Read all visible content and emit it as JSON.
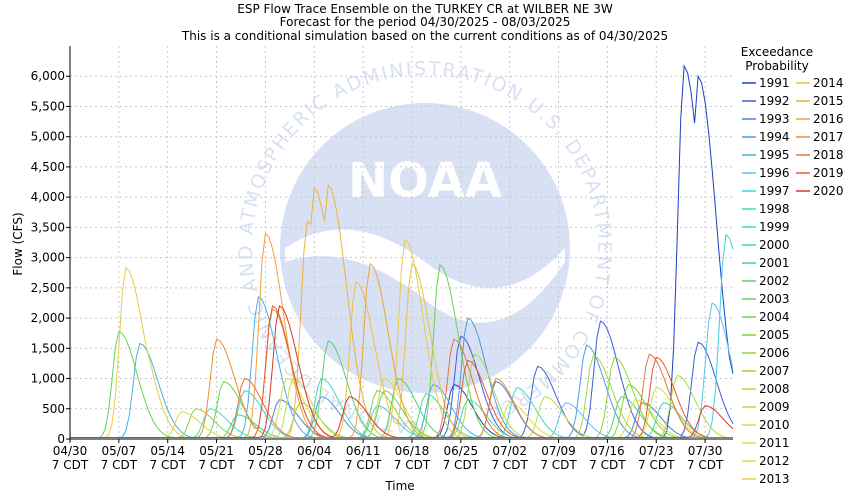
{
  "chart_data": {
    "type": "line",
    "title": [
      "ESP Flow Trace Ensemble on the TURKEY CR at WILBER NE 3W",
      "Forecast for the period 04/30/2025 - 08/03/2025",
      "This is a conditional simulation based on the current conditions as of 04/30/2025"
    ],
    "xlabel": "Time",
    "ylabel": "Flow (CFS)",
    "xlim": [
      "2025-04-30",
      "2025-08-03"
    ],
    "ylim": [
      0,
      6500
    ],
    "grid": true,
    "x_ticks": [
      {
        "date": "2025-04-30",
        "label": "04/30",
        "sub": "7 CDT"
      },
      {
        "date": "2025-05-07",
        "label": "05/07",
        "sub": "7 CDT"
      },
      {
        "date": "2025-05-14",
        "label": "05/14",
        "sub": "7 CDT"
      },
      {
        "date": "2025-05-21",
        "label": "05/21",
        "sub": "7 CDT"
      },
      {
        "date": "2025-05-28",
        "label": "05/28",
        "sub": "7 CDT"
      },
      {
        "date": "2025-06-04",
        "label": "06/04",
        "sub": "7 CDT"
      },
      {
        "date": "2025-06-11",
        "label": "06/11",
        "sub": "7 CDT"
      },
      {
        "date": "2025-06-18",
        "label": "06/18",
        "sub": "7 CDT"
      },
      {
        "date": "2025-06-25",
        "label": "06/25",
        "sub": "7 CDT"
      },
      {
        "date": "2025-07-02",
        "label": "07/02",
        "sub": "7 CDT"
      },
      {
        "date": "2025-07-09",
        "label": "07/09",
        "sub": "7 CDT"
      },
      {
        "date": "2025-07-16",
        "label": "07/16",
        "sub": "7 CDT"
      },
      {
        "date": "2025-07-23",
        "label": "07/23",
        "sub": "7 CDT"
      },
      {
        "date": "2025-07-30",
        "label": "07/30",
        "sub": "7 CDT"
      }
    ],
    "y_ticks": [
      {
        "value": 0,
        "label": "0"
      },
      {
        "value": 500,
        "label": "500"
      },
      {
        "value": 1000,
        "label": "1,000"
      },
      {
        "value": 1500,
        "label": "1,500"
      },
      {
        "value": 2000,
        "label": "2,000"
      },
      {
        "value": 2500,
        "label": "2,500"
      },
      {
        "value": 3000,
        "label": "3,000"
      },
      {
        "value": 3500,
        "label": "3,500"
      },
      {
        "value": 4000,
        "label": "4,000"
      },
      {
        "value": 4500,
        "label": "4,500"
      },
      {
        "value": 5000,
        "label": "5,000"
      },
      {
        "value": 5500,
        "label": "5,500"
      },
      {
        "value": 6000,
        "label": "6,000"
      }
    ],
    "legend_title": [
      "Exceedance",
      "Probability"
    ],
    "legend_position": "right",
    "series": [
      {
        "name": "1991",
        "color": "#1f3fbf",
        "peaks": [
          [
            "2025-07-27",
            6170
          ],
          [
            "2025-07-28",
            4950
          ],
          [
            "2025-07-29",
            6000
          ],
          [
            "2025-07-31",
            2100
          ],
          [
            "2025-06-24",
            900
          ]
        ]
      },
      {
        "name": "1992",
        "color": "#3b5fd4",
        "peaks": [
          [
            "2025-07-15",
            1950
          ],
          [
            "2025-07-29",
            1600
          ],
          [
            "2025-06-25",
            1700
          ],
          [
            "2025-07-06",
            1200
          ]
        ]
      },
      {
        "name": "1993",
        "color": "#4a7fe0",
        "peaks": [
          [
            "2025-07-21",
            600
          ],
          [
            "2025-06-30",
            950
          ],
          [
            "2025-05-30",
            650
          ]
        ]
      },
      {
        "name": "1994",
        "color": "#4f9ae0",
        "peaks": [
          [
            "2025-06-26",
            2000
          ],
          [
            "2025-07-13",
            1550
          ],
          [
            "2025-06-05",
            700
          ]
        ]
      },
      {
        "name": "1995",
        "color": "#48b0e8",
        "peaks": [
          [
            "2025-05-10",
            1580
          ],
          [
            "2025-05-27",
            2350
          ],
          [
            "2025-06-21",
            900
          ]
        ]
      },
      {
        "name": "1996",
        "color": "#5ec2ec",
        "peaks": [
          [
            "2025-07-31",
            2250
          ],
          [
            "2025-07-10",
            600
          ],
          [
            "2025-06-13",
            550
          ]
        ]
      },
      {
        "name": "1997",
        "color": "#3fd0e0",
        "peaks": [
          [
            "2025-08-02",
            3380
          ],
          [
            "2025-05-25",
            800
          ]
        ]
      },
      {
        "name": "1998",
        "color": "#40d8c8",
        "peaks": [
          [
            "2025-06-05",
            1000
          ],
          [
            "2025-07-03",
            850
          ]
        ]
      },
      {
        "name": "1999",
        "color": "#44dcb4",
        "peaks": [
          [
            "2025-06-26",
            650
          ],
          [
            "2025-05-20",
            500
          ]
        ]
      },
      {
        "name": "2000",
        "color": "#3fd89a",
        "peaks": [
          [
            "2025-06-20",
            750
          ],
          [
            "2025-07-24",
            600
          ]
        ]
      },
      {
        "name": "2001",
        "color": "#45d27e",
        "peaks": [
          [
            "2025-06-16",
            1000
          ],
          [
            "2025-05-24",
            400
          ]
        ]
      },
      {
        "name": "2002",
        "color": "#5ad070",
        "peaks": [
          [
            "2025-06-06",
            1620
          ],
          [
            "2025-07-18",
            700
          ]
        ]
      },
      {
        "name": "2003",
        "color": "#62d45c",
        "peaks": [
          [
            "2025-05-07",
            1780
          ],
          [
            "2025-06-14",
            800
          ]
        ]
      },
      {
        "name": "2004",
        "color": "#6ad44a",
        "peaks": [
          [
            "2025-06-22",
            2880
          ],
          [
            "2025-05-22",
            950
          ]
        ]
      },
      {
        "name": "2005",
        "color": "#7cd43c",
        "peaks": [
          [
            "2025-06-13",
            800
          ],
          [
            "2025-07-19",
            900
          ]
        ]
      },
      {
        "name": "2006",
        "color": "#8ed43a",
        "peaks": [
          [
            "2025-07-17",
            1350
          ],
          [
            "2025-05-18",
            500
          ]
        ]
      },
      {
        "name": "2007",
        "color": "#9ed83e",
        "peaks": [
          [
            "2025-07-14",
            1380
          ],
          [
            "2025-06-02",
            600
          ]
        ]
      },
      {
        "name": "2008",
        "color": "#aedc42",
        "peaks": [
          [
            "2025-07-26",
            1050
          ],
          [
            "2025-06-27",
            1400
          ]
        ]
      },
      {
        "name": "2009",
        "color": "#bede48",
        "peaks": [
          [
            "2025-06-01",
            1000
          ],
          [
            "2025-07-07",
            700
          ]
        ]
      },
      {
        "name": "2010",
        "color": "#cede4a",
        "peaks": [
          [
            "2025-07-23",
            850
          ],
          [
            "2025-05-16",
            450
          ]
        ]
      },
      {
        "name": "2011",
        "color": "#dadc4a",
        "peaks": [
          [
            "2025-06-14",
            1000
          ],
          [
            "2025-07-02",
            600
          ]
        ]
      },
      {
        "name": "2012",
        "color": "#e2d64a",
        "peaks": [
          [
            "2025-05-31",
            1000
          ],
          [
            "2025-07-20",
            650
          ]
        ]
      },
      {
        "name": "2013",
        "color": "#e8cc46",
        "peaks": [
          [
            "2025-05-08",
            2830
          ],
          [
            "2025-05-09",
            2000
          ],
          [
            "2025-06-17",
            3300
          ]
        ]
      },
      {
        "name": "2014",
        "color": "#ecc040",
        "peaks": [
          [
            "2025-06-10",
            2600
          ],
          [
            "2025-06-18",
            2900
          ]
        ]
      },
      {
        "name": "2015",
        "color": "#eeb23a",
        "peaks": [
          [
            "2025-06-04",
            4150
          ],
          [
            "2025-06-06",
            4200
          ],
          [
            "2025-06-03",
            3600
          ]
        ]
      },
      {
        "name": "2016",
        "color": "#eea236",
        "peaks": [
          [
            "2025-05-28",
            3400
          ],
          [
            "2025-06-12",
            2900
          ]
        ]
      },
      {
        "name": "2017",
        "color": "#ee8c36",
        "peaks": [
          [
            "2025-05-21",
            1650
          ],
          [
            "2025-05-29",
            2150
          ],
          [
            "2025-06-30",
            1000
          ]
        ]
      },
      {
        "name": "2018",
        "color": "#ec7234",
        "peaks": [
          [
            "2025-06-24",
            1650
          ],
          [
            "2025-07-22",
            1400
          ],
          [
            "2025-05-25",
            1000
          ]
        ]
      },
      {
        "name": "2019",
        "color": "#e85a30",
        "peaks": [
          [
            "2025-05-29",
            2200
          ],
          [
            "2025-06-26",
            1300
          ],
          [
            "2025-07-23",
            1350
          ]
        ]
      },
      {
        "name": "2020",
        "color": "#d43a28",
        "peaks": [
          [
            "2025-05-30",
            2200
          ],
          [
            "2025-07-30",
            550
          ],
          [
            "2025-06-09",
            700
          ]
        ]
      }
    ]
  },
  "watermark": {
    "logo_text": "NOAA",
    "ring_text": "NATIONAL OCEANIC AND ATMOSPHERIC ADMINISTRATION U.S. DEPARTMENT OF COMMERCE"
  }
}
